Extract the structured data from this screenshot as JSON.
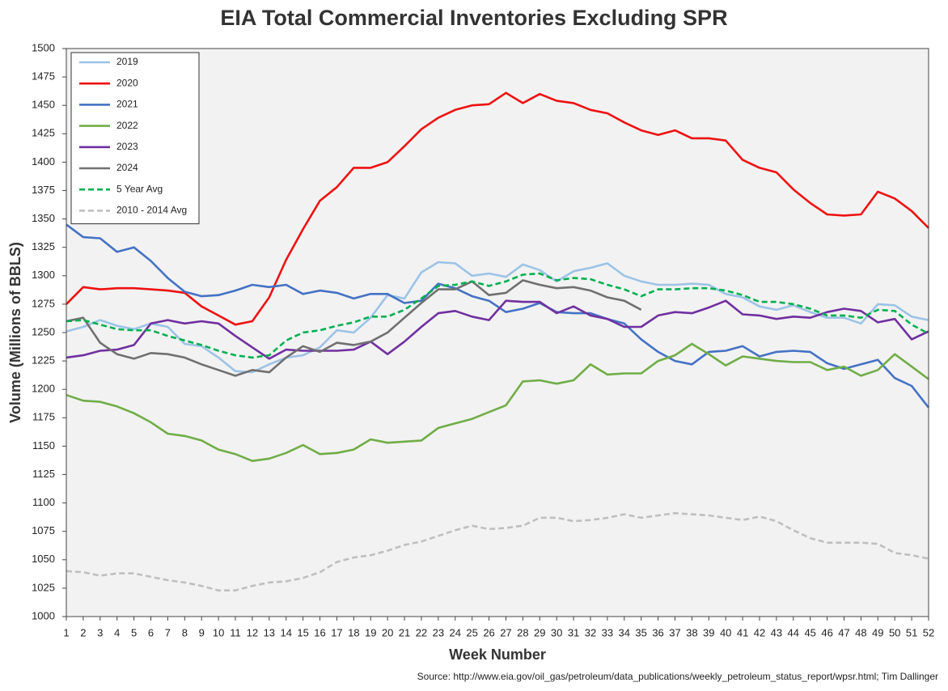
{
  "chart_data": {
    "type": "line",
    "title": "EIA Total Commercial Inventories Excluding SPR",
    "x_label": "Week Number",
    "y_label": "Volume (Millions of BBLS)",
    "source": "Source: http://www.eia.gov/oil_gas/petroleum/data_publications/weekly_petroleum_status_report/wpsr.html; Tim Dallinger",
    "x": [
      1,
      2,
      3,
      4,
      5,
      6,
      7,
      8,
      9,
      10,
      11,
      12,
      13,
      14,
      15,
      16,
      17,
      18,
      19,
      20,
      21,
      22,
      23,
      24,
      25,
      26,
      27,
      28,
      29,
      30,
      31,
      32,
      33,
      34,
      35,
      36,
      37,
      38,
      39,
      40,
      41,
      42,
      43,
      44,
      45,
      46,
      47,
      48,
      49,
      50,
      51,
      52
    ],
    "xlim": [
      1,
      52
    ],
    "xticks": [
      1,
      2,
      3,
      4,
      5,
      6,
      7,
      8,
      9,
      10,
      11,
      12,
      13,
      14,
      15,
      16,
      17,
      18,
      19,
      20,
      21,
      22,
      23,
      24,
      25,
      26,
      27,
      28,
      29,
      30,
      31,
      32,
      33,
      34,
      35,
      36,
      37,
      38,
      39,
      40,
      41,
      42,
      43,
      44,
      45,
      46,
      47,
      48,
      49,
      50,
      51,
      52
    ],
    "ylim": [
      1000,
      1500
    ],
    "yticks": [
      1000,
      1025,
      1050,
      1075,
      1100,
      1125,
      1150,
      1175,
      1200,
      1225,
      1250,
      1275,
      1300,
      1325,
      1350,
      1375,
      1400,
      1425,
      1450,
      1475,
      1500
    ],
    "grid": false,
    "legend": "upper left",
    "series": [
      {
        "name": "2019",
        "color": "#9dc3e6",
        "dashed": false,
        "values": [
          1251,
          1255,
          1261,
          1256,
          1253,
          1258,
          1255,
          1240,
          1238,
          1228,
          1216,
          1215,
          1222,
          1228,
          1230,
          1237,
          1252,
          1250,
          1263,
          1283,
          1280,
          1303,
          1312,
          1311,
          1300,
          1302,
          1299,
          1310,
          1305,
          1295,
          1304,
          1307,
          1311,
          1300,
          1295,
          1292,
          1292,
          1293,
          1292,
          1284,
          1281,
          1273,
          1270,
          1274,
          1268,
          1263,
          1263,
          1258,
          1275,
          1274,
          1264,
          1261
        ]
      },
      {
        "name": "2020",
        "color": "#ee1111",
        "dashed": false,
        "values": [
          1275,
          1290,
          1288,
          1289,
          1289,
          1288,
          1287,
          1285,
          1273,
          1265,
          1257,
          1260,
          1281,
          1314,
          1341,
          1366,
          1378,
          1395,
          1395,
          1400,
          1414,
          1429,
          1439,
          1446,
          1450,
          1451,
          1461,
          1452,
          1460,
          1454,
          1452,
          1446,
          1443,
          1435,
          1428,
          1424,
          1428,
          1421,
          1421,
          1419,
          1402,
          1395,
          1391,
          1376,
          1364,
          1354,
          1353,
          1354,
          1374,
          1368,
          1357,
          1342
        ]
      },
      {
        "name": "2021",
        "color": "#4472c4",
        "dashed": false,
        "values": [
          1345,
          1334,
          1333,
          1321,
          1325,
          1313,
          1298,
          1286,
          1282,
          1283,
          1287,
          1292,
          1290,
          1292,
          1284,
          1287,
          1285,
          1280,
          1284,
          1284,
          1276,
          1278,
          1293,
          1289,
          1282,
          1278,
          1268,
          1271,
          1276,
          1268,
          1267,
          1267,
          1262,
          1258,
          1244,
          1233,
          1225,
          1222,
          1233,
          1234,
          1238,
          1229,
          1233,
          1234,
          1233,
          1223,
          1218,
          1222,
          1226,
          1210,
          1203,
          1184
        ]
      },
      {
        "name": "2022",
        "color": "#70ad47",
        "dashed": false,
        "values": [
          1195,
          1190,
          1189,
          1185,
          1179,
          1171,
          1161,
          1159,
          1155,
          1147,
          1143,
          1137,
          1139,
          1144,
          1151,
          1143,
          1144,
          1147,
          1156,
          1153,
          1154,
          1155,
          1166,
          1170,
          1174,
          1180,
          1186,
          1207,
          1208,
          1205,
          1208,
          1222,
          1213,
          1214,
          1214,
          1225,
          1230,
          1240,
          1231,
          1221,
          1229,
          1227,
          1225,
          1224,
          1224,
          1217,
          1220,
          1212,
          1217,
          1231,
          1220,
          1209
        ]
      },
      {
        "name": "2023",
        "color": "#7030a0",
        "dashed": false,
        "values": [
          1228,
          1230,
          1234,
          1235,
          1239,
          1258,
          1261,
          1258,
          1260,
          1258,
          1247,
          1237,
          1227,
          1235,
          1234,
          1234,
          1234,
          1235,
          1242,
          1231,
          1242,
          1255,
          1267,
          1269,
          1264,
          1261,
          1278,
          1277,
          1277,
          1267,
          1273,
          1265,
          1262,
          1255,
          1255,
          1265,
          1268,
          1267,
          1272,
          1278,
          1266,
          1265,
          1262,
          1264,
          1263,
          1268,
          1271,
          1269,
          1259,
          1262,
          1244,
          1251
        ]
      },
      {
        "name": "2024",
        "color": "#707070",
        "dashed": false,
        "values": [
          1260,
          1263,
          1241,
          1231,
          1227,
          1232,
          1231,
          1228,
          1222,
          1217,
          1212,
          1217,
          1215,
          1228,
          1238,
          1233,
          1241,
          1239,
          1242,
          1250,
          1263,
          1276,
          1288,
          1288,
          1295,
          1283,
          1285,
          1296,
          1292,
          1289,
          1290,
          1287,
          1281,
          1278,
          1270,
          null,
          null,
          null,
          null,
          null,
          null,
          null,
          null,
          null,
          null,
          null,
          null,
          null,
          null,
          null,
          null,
          null
        ]
      },
      {
        "name": "5 Year Avg",
        "color": "#00b050",
        "dashed": true,
        "values": [
          1260,
          1261,
          1257,
          1253,
          1252,
          1252,
          1247,
          1243,
          1239,
          1234,
          1230,
          1228,
          1230,
          1243,
          1250,
          1252,
          1256,
          1259,
          1264,
          1264,
          1270,
          1280,
          1291,
          1292,
          1295,
          1291,
          1295,
          1301,
          1302,
          1296,
          1298,
          1297,
          1292,
          1288,
          1282,
          1288,
          1288,
          1289,
          1289,
          1287,
          1283,
          1277,
          1277,
          1275,
          1271,
          1265,
          1265,
          1263,
          1270,
          1269,
          1257,
          1249
        ]
      },
      {
        "name": "2010 - 2014 Avg",
        "color": "#bfbfbf",
        "dashed": true,
        "values": [
          1040,
          1039,
          1036,
          1038,
          1038,
          1035,
          1032,
          1030,
          1027,
          1023,
          1023,
          1027,
          1030,
          1031,
          1034,
          1039,
          1048,
          1052,
          1054,
          1058,
          1063,
          1066,
          1071,
          1076,
          1080,
          1077,
          1078,
          1080,
          1087,
          1087,
          1084,
          1085,
          1087,
          1090,
          1087,
          1089,
          1091,
          1090,
          1089,
          1087,
          1085,
          1088,
          1084,
          1076,
          1069,
          1065,
          1065,
          1065,
          1064,
          1056,
          1054,
          1051
        ]
      }
    ]
  }
}
